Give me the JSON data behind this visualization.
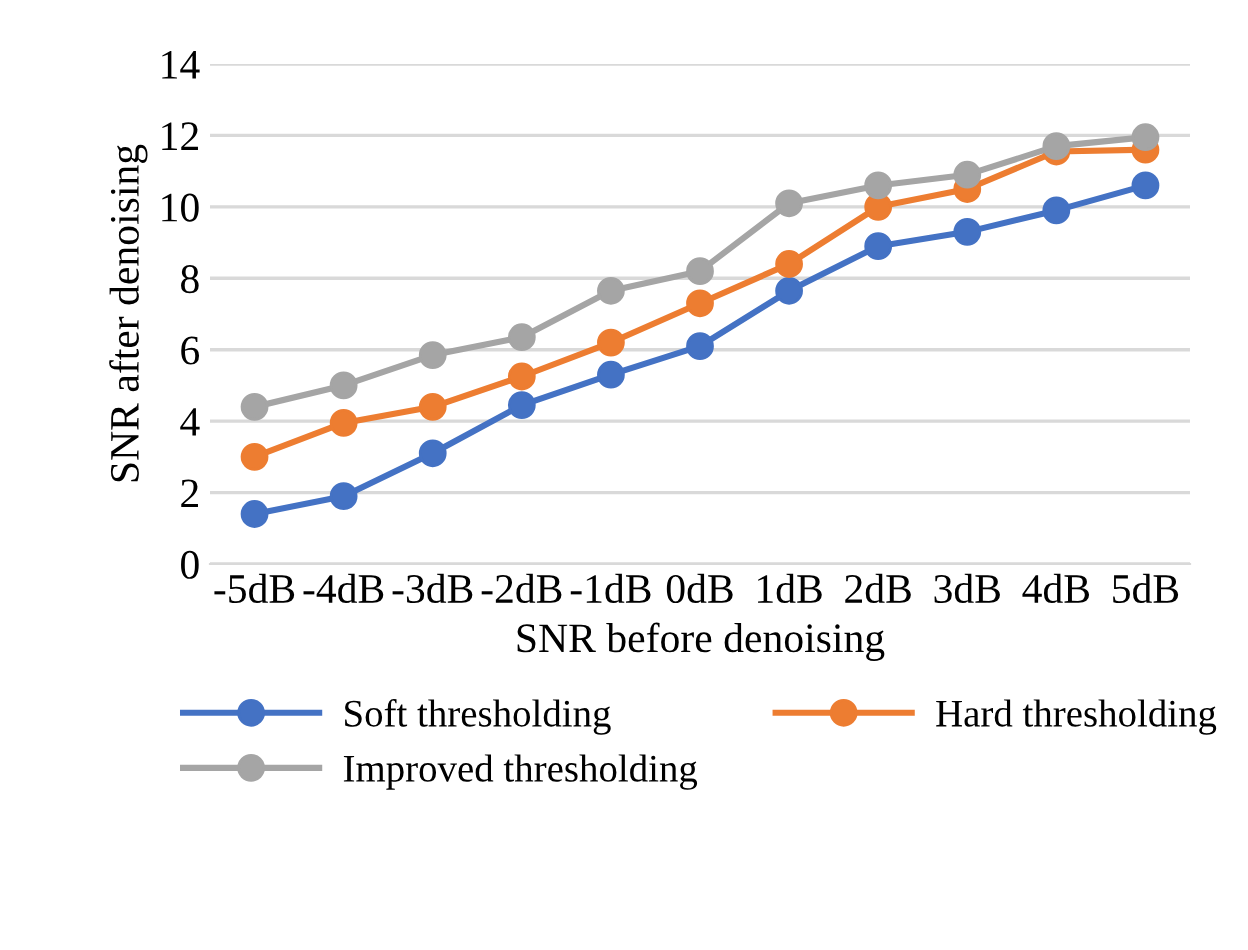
{
  "chart_data": {
    "type": "line",
    "xlabel": "SNR before denoising",
    "ylabel": "SNR after denoising",
    "categories": [
      "-5dB",
      "-4dB",
      "-3dB",
      "-2dB",
      "-1dB",
      "0dB",
      "1dB",
      "2dB",
      "3dB",
      "4dB",
      "5dB"
    ],
    "series": [
      {
        "name": "Soft thresholding",
        "color": "#4472c4",
        "values": [
          1.4,
          1.9,
          3.1,
          4.45,
          5.3,
          6.1,
          7.65,
          8.9,
          9.3,
          9.9,
          10.6
        ]
      },
      {
        "name": "Hard thresholding",
        "color": "#ed7d31",
        "values": [
          3.0,
          3.95,
          4.4,
          5.25,
          6.2,
          7.3,
          8.4,
          10.0,
          10.5,
          11.55,
          11.6
        ]
      },
      {
        "name": "Improved thresholding",
        "color": "#a5a5a5",
        "values": [
          4.4,
          5.0,
          5.85,
          6.35,
          7.65,
          8.2,
          10.1,
          10.6,
          10.9,
          11.7,
          11.95
        ]
      }
    ],
    "ylim": [
      0,
      14
    ],
    "yticks": [
      0,
      2,
      4,
      6,
      8,
      10,
      12,
      14
    ],
    "grid": "y",
    "legend": "bottom",
    "marker": "circle",
    "line_style": "solid"
  }
}
